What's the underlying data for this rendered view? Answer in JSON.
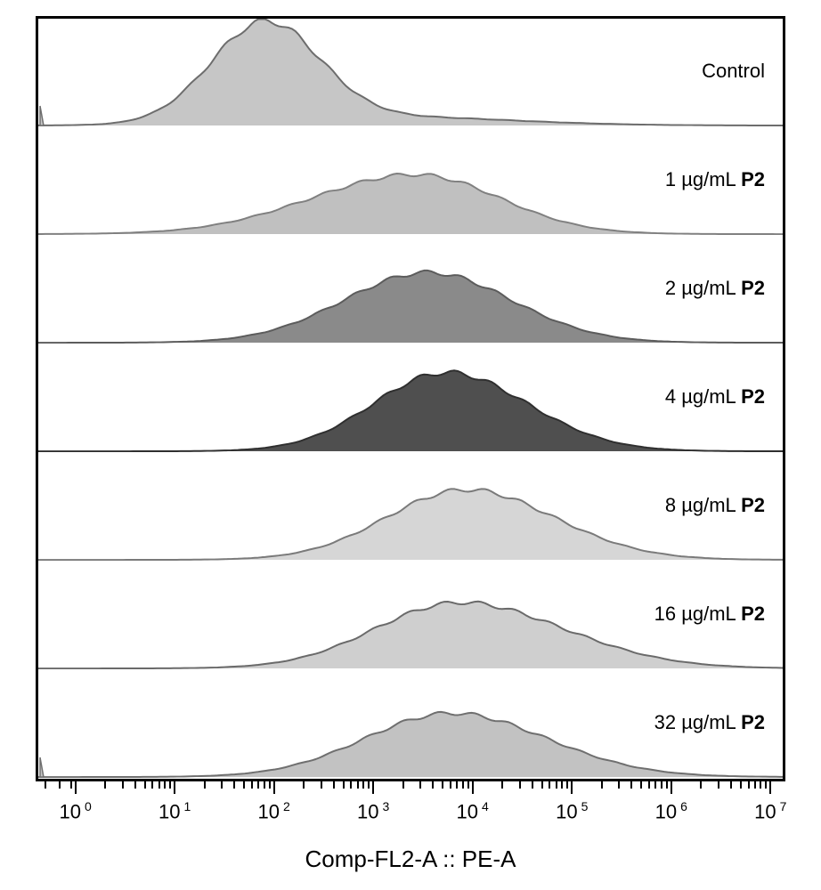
{
  "chart": {
    "type": "histogram-overlay",
    "x_label": "Comp-FL2-A :: PE-A",
    "x_scale": "log",
    "x_exponents": [
      0,
      1,
      2,
      3,
      4,
      5,
      6,
      7
    ],
    "x_tick_base_label": "10",
    "frame_border_color": "#000000",
    "frame_border_width": 3,
    "background_color": "#ffffff",
    "label_fontsize": 22,
    "title_fontsize": 26,
    "panel_count": 7,
    "minor_ticks_per_decade": [
      2,
      3,
      4,
      5,
      6,
      7,
      8,
      9
    ],
    "panels": [
      {
        "label_prefix": "Control",
        "label_bold": "",
        "fill": "#c6c6c6",
        "stroke": "#6d6d6d",
        "stroke_width": 2,
        "peak_exp": 1.9,
        "spread": 0.55,
        "height": 0.94,
        "shoulder": {
          "exp": 3.2,
          "height": 0.08,
          "spread": 1.2
        }
      },
      {
        "label_prefix": "1 µg/mL ",
        "label_bold": "P2",
        "fill": "#c0c0c0",
        "stroke": "#808080",
        "stroke_width": 2,
        "peak_exp": 3.4,
        "spread": 0.95,
        "height": 0.56,
        "skew": -0.1
      },
      {
        "label_prefix": "2 µg/mL ",
        "label_bold": "P2",
        "fill": "#8a8a8a",
        "stroke": "#5c5c5c",
        "stroke_width": 2,
        "peak_exp": 3.55,
        "spread": 0.85,
        "height": 0.66,
        "skew": 0
      },
      {
        "label_prefix": "4 µg/mL ",
        "label_bold": "P2",
        "fill": "#4f4f4f",
        "stroke": "#2f2f2f",
        "stroke_width": 2,
        "peak_exp": 3.75,
        "spread": 0.78,
        "height": 0.74,
        "skew": 0.05
      },
      {
        "label_prefix": "8 µg/mL ",
        "label_bold": "P2",
        "fill": "#d6d6d6",
        "stroke": "#7a7a7a",
        "stroke_width": 2,
        "peak_exp": 3.95,
        "spread": 0.85,
        "height": 0.66,
        "skew": 0.05
      },
      {
        "label_prefix": "16 µg/mL ",
        "label_bold": "P2",
        "fill": "#cfcfcf",
        "stroke": "#6a6a6a",
        "stroke_width": 2,
        "peak_exp": 3.9,
        "spread": 0.95,
        "height": 0.62,
        "skew": 0.1
      },
      {
        "label_prefix": "32 µg/mL ",
        "label_bold": "P2",
        "fill": "#c2c2c2",
        "stroke": "#6f6f6f",
        "stroke_width": 2,
        "peak_exp": 3.8,
        "spread": 0.92,
        "height": 0.6,
        "skew": 0.05
      }
    ]
  }
}
